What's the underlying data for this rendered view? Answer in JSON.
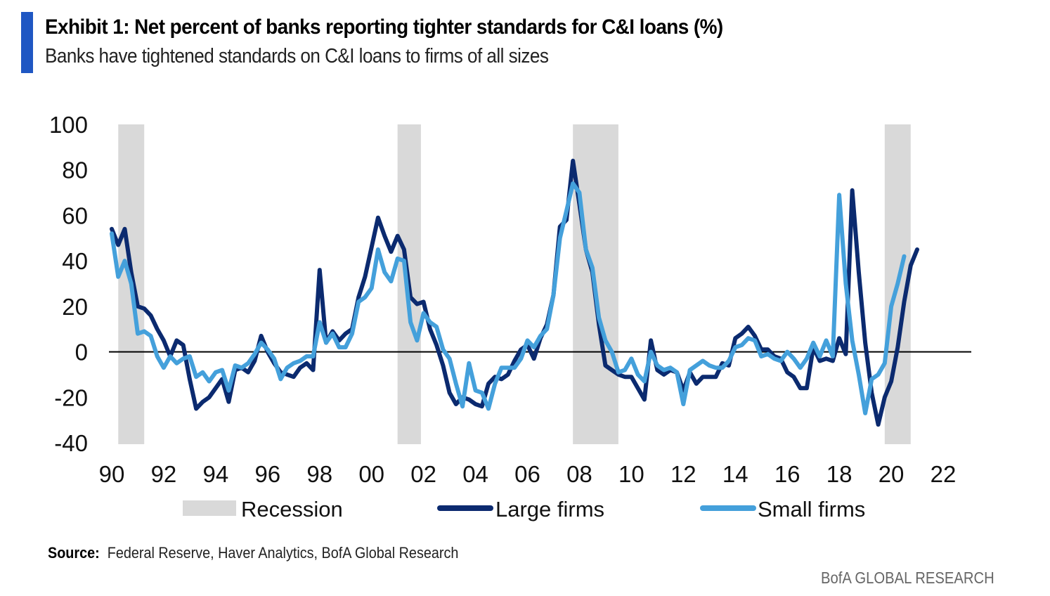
{
  "header": {
    "title": "Exhibit 1: Net percent of banks reporting tighter standards for C&I loans (%)",
    "subtitle": "Banks have tightened standards on C&I loans to firms of all sizes"
  },
  "footer": {
    "source_label": "Source:",
    "source_text": "Federal Reserve, Haver Analytics, BofA Global Research",
    "brand": "BofA GLOBAL RESEARCH"
  },
  "colors": {
    "accent": "#1f57c3",
    "large_firms": "#0b2a6f",
    "small_firms": "#44a0db",
    "recession": "#d9d9d9",
    "zero_line": "#000000"
  },
  "chart_data": {
    "type": "line",
    "title": "Exhibit 1: Net percent of banks reporting tighter standards for C&I loans (%)",
    "subtitle": "Banks have tightened standards on C&I loans to firms of all sizes",
    "xlabel": "",
    "ylabel": "",
    "ylim": [
      -40,
      100
    ],
    "xlim": [
      1990,
      2023.2
    ],
    "yticks": [
      100,
      80,
      60,
      40,
      20,
      0,
      -20,
      -40
    ],
    "xticks": [
      {
        "value": 1990,
        "label": "90"
      },
      {
        "value": 1992,
        "label": "92"
      },
      {
        "value": 1994,
        "label": "94"
      },
      {
        "value": 1996,
        "label": "96"
      },
      {
        "value": 1998,
        "label": "98"
      },
      {
        "value": 2000,
        "label": "00"
      },
      {
        "value": 2002,
        "label": "02"
      },
      {
        "value": 2004,
        "label": "04"
      },
      {
        "value": 2006,
        "label": "06"
      },
      {
        "value": 2008,
        "label": "08"
      },
      {
        "value": 2010,
        "label": "10"
      },
      {
        "value": 2012,
        "label": "12"
      },
      {
        "value": 2014,
        "label": "14"
      },
      {
        "value": 2016,
        "label": "16"
      },
      {
        "value": 2018,
        "label": "18"
      },
      {
        "value": 2020,
        "label": "20"
      },
      {
        "value": 2022,
        "label": "22"
      }
    ],
    "grid": false,
    "zero_line": true,
    "legend_position": "bottom",
    "legend": [
      "Recession",
      "Large firms",
      "Small firms"
    ],
    "recessions": [
      {
        "start": 1990.25,
        "end": 1991.25
      },
      {
        "start": 2001.0,
        "end": 2001.9
      },
      {
        "start": 2007.75,
        "end": 2009.5
      },
      {
        "start": 2019.75,
        "end": 2020.75
      }
    ],
    "x_start": 1990.0,
    "x_step": 0.25,
    "series": [
      {
        "name": "Large firms",
        "values": [
          54,
          47,
          54,
          35,
          20,
          19,
          16,
          10,
          5,
          -2,
          5,
          3,
          -12,
          -25,
          -22,
          -20,
          -16,
          -12,
          -22,
          -8,
          -7,
          -9,
          -4,
          7,
          0,
          -5,
          -9,
          -10,
          -11,
          -7,
          -5,
          -8,
          36,
          4,
          9,
          5,
          8,
          10,
          24,
          33,
          46,
          59,
          51,
          44,
          51,
          45,
          24,
          21,
          22,
          10,
          3,
          -6,
          -18,
          -23,
          -20,
          -21,
          -23,
          -24,
          -14,
          -11,
          -12,
          -10,
          -4,
          1,
          3,
          -3,
          6,
          12,
          25,
          55,
          58,
          84,
          65,
          45,
          35,
          12,
          -6,
          -8,
          -10,
          -11,
          -11,
          -16,
          -21,
          5,
          -8,
          -10,
          -8,
          -9,
          -17,
          -9,
          -14,
          -11,
          -11,
          -11,
          -5,
          -6,
          6,
          8,
          11,
          7,
          1,
          1,
          -2,
          -3,
          -9,
          -11,
          -16,
          -16,
          2,
          -4,
          -3,
          -4,
          6,
          -1,
          71,
          35,
          4,
          -18,
          -32,
          -20,
          -13,
          2,
          22,
          38,
          45
        ]
      },
      {
        "name": "Small firms",
        "values": [
          52,
          33,
          40,
          30,
          8,
          9,
          7,
          -2,
          -7,
          -2,
          -5,
          -3,
          -2,
          -11,
          -9,
          -13,
          -9,
          -8,
          -17,
          -6,
          -7,
          -5,
          -1,
          4,
          1,
          -3,
          -12,
          -7,
          -5,
          -4,
          -2,
          -2,
          13,
          4,
          8,
          2,
          2,
          8,
          22,
          24,
          28,
          45,
          35,
          31,
          41,
          40,
          13,
          5,
          17,
          13,
          11,
          1,
          -3,
          -14,
          -24,
          -5,
          -17,
          -18,
          -25,
          -14,
          -7,
          -7,
          -7,
          -3,
          5,
          2,
          7,
          10,
          25,
          50,
          62,
          74,
          70,
          45,
          37,
          15,
          5,
          0,
          -9,
          -8,
          -3,
          -10,
          -13,
          0,
          -6,
          -8,
          -7,
          -9,
          -23,
          -8,
          -6,
          -4,
          -6,
          -7,
          -7,
          -4,
          2,
          3,
          6,
          5,
          -2,
          -1,
          -3,
          -4,
          0,
          -3,
          -7,
          -3,
          4,
          -2,
          5,
          -2,
          69,
          30,
          5,
          -10,
          -27,
          -12,
          -10,
          -5,
          20,
          30,
          42
        ]
      }
    ]
  }
}
